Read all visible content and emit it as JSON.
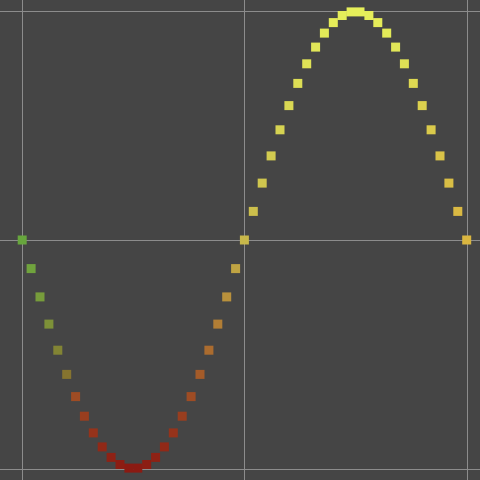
{
  "chart_data": {
    "type": "scatter",
    "title": "",
    "xlabel": "",
    "ylabel": "",
    "grid": true,
    "xlim": [
      -0.05,
      1.03
    ],
    "ylim": [
      -1.05,
      1.05
    ],
    "gridlines_x": [
      0,
      0.5,
      1
    ],
    "gridlines_y": [
      -1,
      0,
      1
    ],
    "colors": {
      "background": "#454545",
      "grid": "#8c8c8c",
      "low": "#8b1a12",
      "mid": "#c8b84a",
      "high": "#e6ef5a",
      "start": "#4fa23a",
      "end": "#e6b43a"
    },
    "series": [
      {
        "marker": "square",
        "points": [
          [
            0.0,
            0.0
          ],
          [
            0.02,
            -0.125
          ],
          [
            0.04,
            -0.249
          ],
          [
            0.06,
            -0.368
          ],
          [
            0.08,
            -0.482
          ],
          [
            0.1,
            -0.588
          ],
          [
            0.12,
            -0.685
          ],
          [
            0.14,
            -0.771
          ],
          [
            0.16,
            -0.844
          ],
          [
            0.18,
            -0.905
          ],
          [
            0.2,
            -0.951
          ],
          [
            0.22,
            -0.982
          ],
          [
            0.24,
            -0.998
          ],
          [
            0.26,
            -0.998
          ],
          [
            0.28,
            -0.982
          ],
          [
            0.3,
            -0.951
          ],
          [
            0.32,
            -0.905
          ],
          [
            0.34,
            -0.844
          ],
          [
            0.36,
            -0.771
          ],
          [
            0.38,
            -0.685
          ],
          [
            0.4,
            -0.588
          ],
          [
            0.42,
            -0.482
          ],
          [
            0.44,
            -0.368
          ],
          [
            0.46,
            -0.249
          ],
          [
            0.48,
            -0.125
          ],
          [
            0.5,
            0.0
          ],
          [
            0.52,
            0.125
          ],
          [
            0.54,
            0.249
          ],
          [
            0.56,
            0.368
          ],
          [
            0.58,
            0.482
          ],
          [
            0.6,
            0.588
          ],
          [
            0.62,
            0.685
          ],
          [
            0.64,
            0.771
          ],
          [
            0.66,
            0.844
          ],
          [
            0.68,
            0.905
          ],
          [
            0.7,
            0.951
          ],
          [
            0.72,
            0.982
          ],
          [
            0.74,
            0.998
          ],
          [
            0.76,
            0.998
          ],
          [
            0.78,
            0.982
          ],
          [
            0.8,
            0.951
          ],
          [
            0.82,
            0.905
          ],
          [
            0.84,
            0.844
          ],
          [
            0.86,
            0.771
          ],
          [
            0.88,
            0.685
          ],
          [
            0.9,
            0.588
          ],
          [
            0.92,
            0.482
          ],
          [
            0.94,
            0.368
          ],
          [
            0.96,
            0.249
          ],
          [
            0.98,
            0.125
          ],
          [
            1.0,
            0.0
          ]
        ]
      }
    ]
  }
}
